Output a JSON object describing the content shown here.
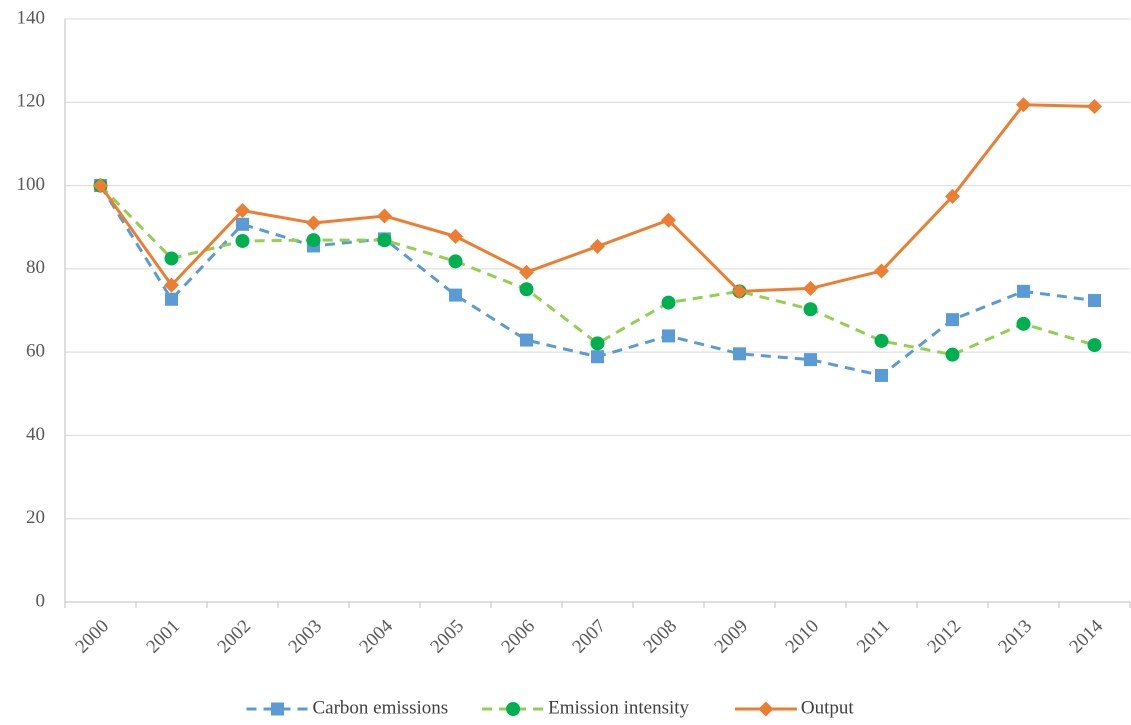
{
  "chart_data": {
    "type": "line",
    "categories": [
      "2000",
      "2001",
      "2002",
      "2003",
      "2004",
      "2005",
      "2006",
      "2007",
      "2008",
      "2009",
      "2010",
      "2011",
      "2012",
      "2013",
      "2014"
    ],
    "series": [
      {
        "name": "Carbon emissions",
        "color": "#5b9bd5",
        "marker_color": "#5b9bd5",
        "marker": "square",
        "dashed": true,
        "values": [
          100,
          72.7,
          90.7,
          85.5,
          87.2,
          73.7,
          62.9,
          58.9,
          63.9,
          59.6,
          58.2,
          54.4,
          67.8,
          74.6,
          72.4
        ]
      },
      {
        "name": "Emission intensity",
        "color": "#92d050",
        "marker_color": "#00b050",
        "marker": "circle",
        "dashed": true,
        "values": [
          100,
          82.5,
          86.7,
          86.9,
          86.9,
          81.8,
          75.1,
          62.1,
          71.9,
          74.6,
          70.3,
          62.7,
          59.4,
          66.8,
          61.7
        ]
      },
      {
        "name": "Output",
        "color": "#ed7d31",
        "marker_color": "#ed7d31",
        "marker": "diamond",
        "dashed": false,
        "values": [
          100,
          76.1,
          94.0,
          91.0,
          92.7,
          87.8,
          79.2,
          85.4,
          91.7,
          74.6,
          75.3,
          79.5,
          97.4,
          119.4,
          119.0
        ]
      }
    ],
    "ylim": [
      0,
      140
    ],
    "yticks": [
      0,
      20,
      40,
      60,
      80,
      100,
      120,
      140
    ],
    "grid": true,
    "legend": "bottom"
  }
}
